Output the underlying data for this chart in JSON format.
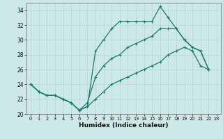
{
  "xlabel": "Humidex (Indice chaleur)",
  "background_color": "#cce8e8",
  "grid_color": "#b8d8d8",
  "line_color": "#1a7a6a",
  "xlim": [
    -0.5,
    23.5
  ],
  "ylim": [
    20,
    35
  ],
  "xticks": [
    0,
    1,
    2,
    3,
    4,
    5,
    6,
    7,
    8,
    9,
    10,
    11,
    12,
    13,
    14,
    15,
    16,
    17,
    18,
    19,
    20,
    21,
    22,
    23
  ],
  "yticks": [
    20,
    22,
    24,
    26,
    28,
    30,
    32,
    34
  ],
  "line1_y": [
    24.0,
    23.0,
    22.5,
    22.5,
    22.0,
    21.5,
    20.5,
    21.0,
    28.5,
    30.0,
    31.5,
    32.5,
    32.5,
    32.5,
    32.5,
    32.5,
    34.5,
    33.0,
    31.5,
    30.0,
    29.0,
    28.5,
    26.0
  ],
  "line2_y": [
    24.0,
    23.0,
    22.5,
    22.5,
    22.0,
    21.5,
    20.5,
    21.5,
    25.0,
    26.5,
    27.5,
    28.0,
    29.0,
    29.5,
    30.0,
    30.5,
    31.5,
    31.5,
    31.5,
    30.0,
    29.0,
    28.5,
    26.0
  ],
  "line3_y": [
    24.0,
    23.0,
    22.5,
    22.5,
    22.0,
    21.5,
    20.5,
    21.0,
    22.0,
    23.0,
    24.0,
    24.5,
    25.0,
    25.5,
    26.0,
    26.5,
    27.0,
    28.0,
    28.5,
    29.0,
    28.5,
    26.5,
    26.0
  ]
}
